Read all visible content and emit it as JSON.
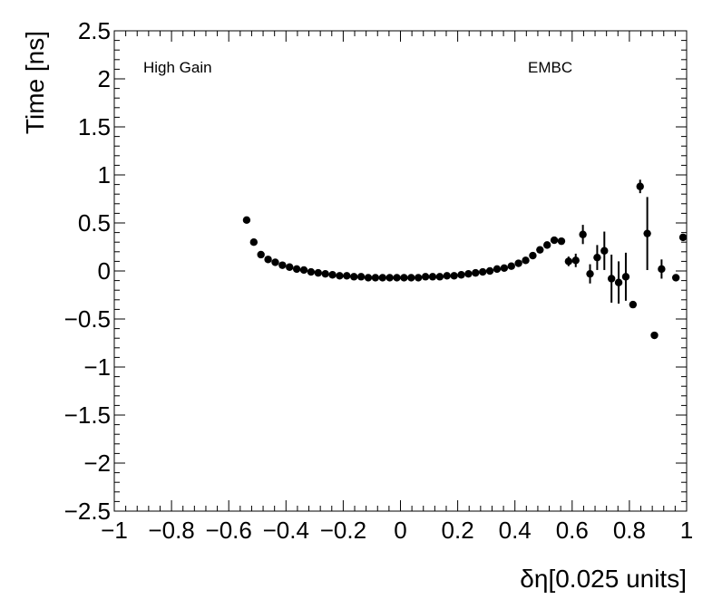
{
  "chart_data": {
    "type": "scatter",
    "xlabel": "δη[0.025 units]",
    "ylabel": "Time [ns]",
    "annotations": {
      "left": "High Gain",
      "right": "EMBC"
    },
    "xlim": [
      -1,
      1
    ],
    "ylim": [
      -2.5,
      2.5
    ],
    "x_ticks": [
      -1,
      -0.8,
      -0.6,
      -0.4,
      -0.2,
      0,
      0.2,
      0.4,
      0.6,
      0.8,
      1
    ],
    "x_tick_labels": [
      "−1",
      "−0.8",
      "−0.6",
      "−0.4",
      "−0.2",
      "0",
      "0.2",
      "0.4",
      "0.6",
      "0.8",
      "1"
    ],
    "y_ticks": [
      -2.5,
      -2,
      -1.5,
      -1,
      -0.5,
      0,
      0.5,
      1,
      1.5,
      2,
      2.5
    ],
    "y_tick_labels": [
      "−2.5",
      "−2",
      "−1.5",
      "−1",
      "−0.5",
      "0",
      "0.5",
      "1",
      "1.5",
      "2",
      "2.5"
    ],
    "grid": false,
    "marker_color": "#000000",
    "points": [
      {
        "x": -0.5375,
        "y": 0.53,
        "err": 0.0
      },
      {
        "x": -0.5125,
        "y": 0.3,
        "err": 0.0
      },
      {
        "x": -0.4875,
        "y": 0.17,
        "err": 0.0
      },
      {
        "x": -0.4625,
        "y": 0.12,
        "err": 0.0
      },
      {
        "x": -0.4375,
        "y": 0.09,
        "err": 0.0
      },
      {
        "x": -0.4125,
        "y": 0.06,
        "err": 0.0
      },
      {
        "x": -0.3875,
        "y": 0.04,
        "err": 0.0
      },
      {
        "x": -0.3625,
        "y": 0.02,
        "err": 0.0
      },
      {
        "x": -0.3375,
        "y": 0.01,
        "err": 0.0
      },
      {
        "x": -0.3125,
        "y": -0.01,
        "err": 0.0
      },
      {
        "x": -0.2875,
        "y": -0.02,
        "err": 0.0
      },
      {
        "x": -0.2625,
        "y": -0.03,
        "err": 0.0
      },
      {
        "x": -0.2375,
        "y": -0.04,
        "err": 0.0
      },
      {
        "x": -0.2125,
        "y": -0.05,
        "err": 0.0
      },
      {
        "x": -0.1875,
        "y": -0.05,
        "err": 0.0
      },
      {
        "x": -0.1625,
        "y": -0.06,
        "err": 0.0
      },
      {
        "x": -0.1375,
        "y": -0.06,
        "err": 0.0
      },
      {
        "x": -0.1125,
        "y": -0.07,
        "err": 0.0
      },
      {
        "x": -0.0875,
        "y": -0.07,
        "err": 0.0
      },
      {
        "x": -0.0625,
        "y": -0.07,
        "err": 0.0
      },
      {
        "x": -0.0375,
        "y": -0.07,
        "err": 0.0
      },
      {
        "x": -0.0125,
        "y": -0.07,
        "err": 0.0
      },
      {
        "x": 0.0125,
        "y": -0.07,
        "err": 0.0
      },
      {
        "x": 0.0375,
        "y": -0.07,
        "err": 0.0
      },
      {
        "x": 0.0625,
        "y": -0.07,
        "err": 0.0
      },
      {
        "x": 0.0875,
        "y": -0.06,
        "err": 0.0
      },
      {
        "x": 0.1125,
        "y": -0.06,
        "err": 0.0
      },
      {
        "x": 0.1375,
        "y": -0.06,
        "err": 0.0
      },
      {
        "x": 0.1625,
        "y": -0.05,
        "err": 0.0
      },
      {
        "x": 0.1875,
        "y": -0.05,
        "err": 0.0
      },
      {
        "x": 0.2125,
        "y": -0.04,
        "err": 0.0
      },
      {
        "x": 0.2375,
        "y": -0.03,
        "err": 0.0
      },
      {
        "x": 0.2625,
        "y": -0.02,
        "err": 0.0
      },
      {
        "x": 0.2875,
        "y": -0.01,
        "err": 0.0
      },
      {
        "x": 0.3125,
        "y": 0.0,
        "err": 0.0
      },
      {
        "x": 0.3375,
        "y": 0.02,
        "err": 0.0
      },
      {
        "x": 0.3625,
        "y": 0.03,
        "err": 0.0
      },
      {
        "x": 0.3875,
        "y": 0.05,
        "err": 0.0
      },
      {
        "x": 0.4125,
        "y": 0.08,
        "err": 0.0
      },
      {
        "x": 0.4375,
        "y": 0.11,
        "err": 0.0
      },
      {
        "x": 0.4625,
        "y": 0.16,
        "err": 0.0
      },
      {
        "x": 0.4875,
        "y": 0.22,
        "err": 0.0
      },
      {
        "x": 0.5125,
        "y": 0.27,
        "err": 0.0
      },
      {
        "x": 0.5375,
        "y": 0.32,
        "err": 0.03
      },
      {
        "x": 0.5625,
        "y": 0.31,
        "err": 0.03
      },
      {
        "x": 0.5875,
        "y": 0.1,
        "err": 0.05
      },
      {
        "x": 0.6125,
        "y": 0.11,
        "err": 0.07
      },
      {
        "x": 0.6375,
        "y": 0.38,
        "err": 0.1
      },
      {
        "x": 0.6625,
        "y": -0.03,
        "err": 0.1
      },
      {
        "x": 0.6875,
        "y": 0.14,
        "err": 0.13
      },
      {
        "x": 0.7125,
        "y": 0.21,
        "err": 0.2
      },
      {
        "x": 0.7375,
        "y": -0.08,
        "err": 0.25
      },
      {
        "x": 0.7625,
        "y": -0.12,
        "err": 0.22
      },
      {
        "x": 0.7875,
        "y": -0.06,
        "err": 0.25
      },
      {
        "x": 0.8125,
        "y": -0.35,
        "err": 0.0
      },
      {
        "x": 0.8375,
        "y": 0.88,
        "err": 0.07
      },
      {
        "x": 0.8625,
        "y": 0.39,
        "err": 0.38
      },
      {
        "x": 0.8875,
        "y": -0.67,
        "err": 0.0
      },
      {
        "x": 0.9125,
        "y": 0.02,
        "err": 0.1
      },
      {
        "x": 0.9625,
        "y": -0.07,
        "err": 0.0
      },
      {
        "x": 0.9875,
        "y": 0.35,
        "err": 0.0
      }
    ]
  }
}
